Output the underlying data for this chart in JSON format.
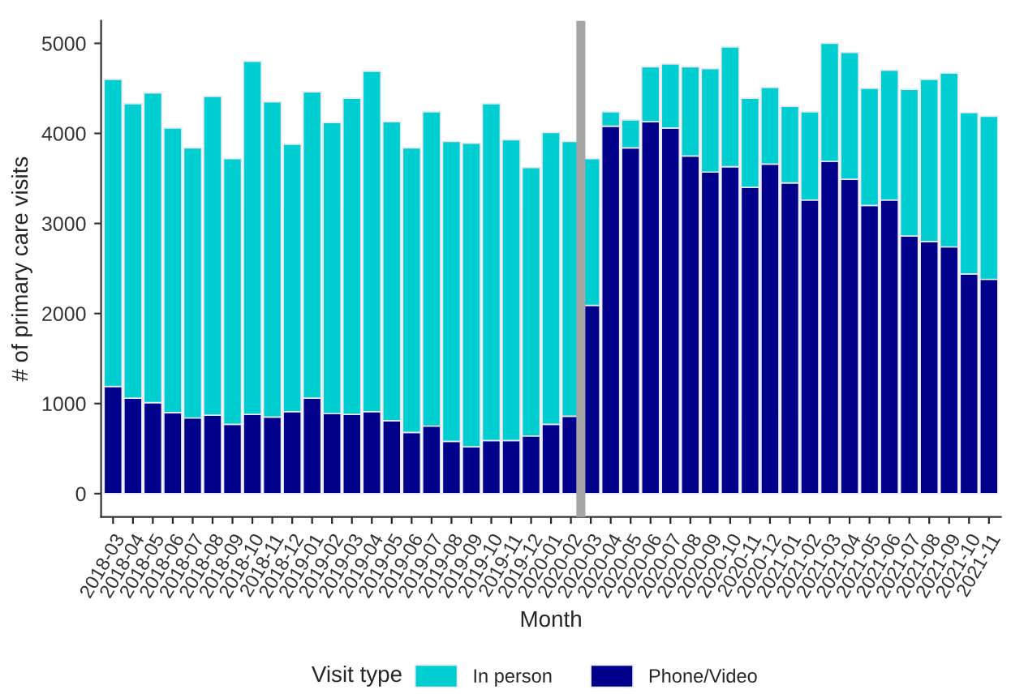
{
  "chart_data": {
    "type": "bar",
    "stacked": true,
    "xlabel": "Month",
    "ylabel": "# of primary care visits",
    "legend_title": "Visit type",
    "legend": "bottom",
    "grid": false,
    "categories": [
      "2018-03",
      "2018-04",
      "2018-05",
      "2018-06",
      "2018-07",
      "2018-08",
      "2018-09",
      "2018-10",
      "2018-11",
      "2018-12",
      "2019-01",
      "2019-02",
      "2019-03",
      "2019-04",
      "2019-05",
      "2019-06",
      "2019-07",
      "2019-08",
      "2019-09",
      "2019-10",
      "2019-11",
      "2019-12",
      "2020-01",
      "2020-02",
      "2020-03",
      "2020-04",
      "2020-05",
      "2020-06",
      "2020-07",
      "2020-08",
      "2020-09",
      "2020-10",
      "2020-11",
      "2020-12",
      "2021-01",
      "2021-02",
      "2021-03",
      "2021-04",
      "2021-05",
      "2021-06",
      "2021-07",
      "2021-08",
      "2021-09",
      "2021-10",
      "2021-11"
    ],
    "series": [
      {
        "name": "Phone/Video",
        "color": "#00008b",
        "values": [
          1190,
          1060,
          1010,
          900,
          840,
          870,
          770,
          880,
          850,
          910,
          1060,
          890,
          880,
          910,
          810,
          680,
          750,
          580,
          520,
          590,
          590,
          640,
          770,
          860,
          2090,
          4080,
          3840,
          4130,
          4060,
          3750,
          3570,
          3630,
          3400,
          3660,
          3450,
          3260,
          3690,
          3490,
          3200,
          3260,
          2860,
          2800,
          2740,
          2440,
          2380
        ]
      },
      {
        "name": "In person",
        "color": "#00ced1",
        "values": [
          3410,
          3270,
          3440,
          3160,
          3000,
          3540,
          2950,
          3920,
          3500,
          2970,
          3400,
          3230,
          3510,
          3780,
          3320,
          3160,
          3490,
          3330,
          3370,
          3740,
          3340,
          2980,
          3240,
          3050,
          1630,
          160,
          310,
          610,
          710,
          990,
          1150,
          1330,
          990,
          850,
          850,
          980,
          1310,
          1410,
          1300,
          1440,
          1630,
          1800,
          1930,
          1790,
          1810
        ]
      }
    ],
    "ylim": [
      -260,
      5250
    ],
    "yticks": [
      0,
      1000,
      2000,
      3000,
      4000,
      5000
    ]
  }
}
